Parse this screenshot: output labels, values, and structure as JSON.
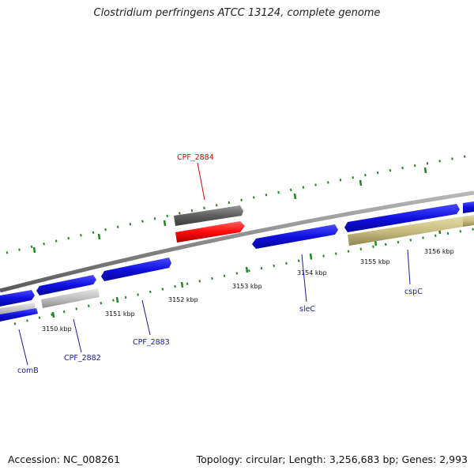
{
  "title": "Clostridium perfringens ATCC 13124, complete genome",
  "footer": {
    "accession": "Accession: NC_008261",
    "topology": "Topology: circular; Length: 3,256,683 bp; Genes: 2,993"
  },
  "ticks": [
    "3150 kbp",
    "3151 kbp",
    "3152 kbp",
    "3153 kbp",
    "3154 kbp",
    "3155 kbp",
    "3156 kbp"
  ],
  "gene_labels": {
    "cpf_2884": "CPF_2884",
    "comb": "comB",
    "cpf_2882": "CPF_2882",
    "cpf_2883": "CPF_2883",
    "slec": "sleC",
    "cspc": "cspC"
  },
  "colors": {
    "label_red": "#e00000",
    "label_blue": "#1a1aa8",
    "forward_gene": "#1515e0",
    "highlight_gene": "#ff1010",
    "dark_gray_gene": "#6a6a6a",
    "olive_gene": "#c8c08a",
    "backbone": "#8a8a8a",
    "dotted_track": "#1a8a1a"
  }
}
